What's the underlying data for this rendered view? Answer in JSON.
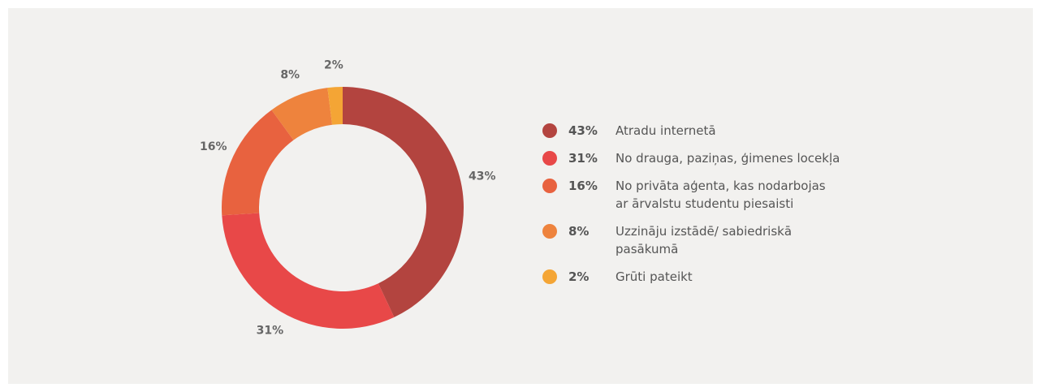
{
  "chart_data": {
    "type": "donut",
    "categories": [
      "Atradu internetā",
      "No drauga, paziņas, ģimenes locekļa",
      "No privāta aģenta, kas nodarbojas\nar ārvalstu studentu piesaisti",
      "Uzzināju izstādē/ sabiedriskā\npasākumā",
      "Grūti pateikt"
    ],
    "values": [
      43,
      31,
      16,
      8,
      2
    ],
    "value_labels": [
      "43%",
      "31%",
      "16%",
      "8%",
      "2%"
    ],
    "colors": [
      "#b3443f",
      "#e84848",
      "#e8623f",
      "#ee833d",
      "#f4a535"
    ]
  }
}
